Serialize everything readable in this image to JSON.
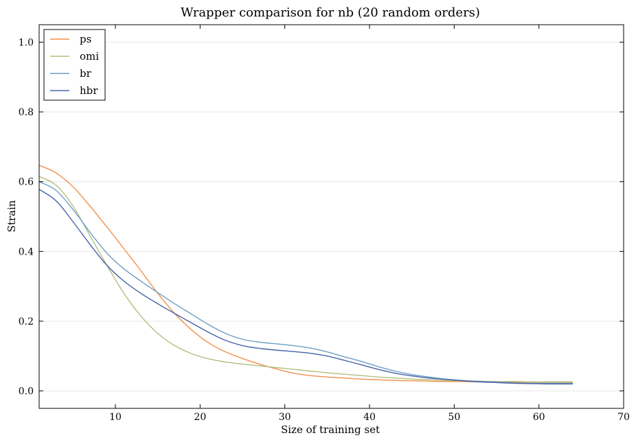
{
  "chart_data": {
    "type": "line",
    "title": "Wrapper comparison for nb (20 random orders)",
    "xlabel": "Size of training set",
    "ylabel": "Strain",
    "xlim": [
      1,
      70
    ],
    "ylim": [
      -0.05,
      1.05
    ],
    "xticks": [
      10,
      20,
      30,
      40,
      50,
      60,
      70
    ],
    "yticks": [
      0.0,
      0.2,
      0.4,
      0.6,
      0.8,
      1.0
    ],
    "grid": "horizontal",
    "legend": "top-left",
    "series": [
      {
        "name": "ps",
        "color": "#f0904a",
        "x": [
          1,
          3,
          5,
          7,
          9,
          11,
          13,
          15,
          17,
          19,
          21,
          23,
          25,
          27,
          29,
          31,
          33,
          35,
          37,
          39,
          41,
          43,
          45,
          47,
          49,
          51,
          53,
          55,
          57,
          59,
          61,
          63,
          64
        ],
        "y": [
          0.647,
          0.625,
          0.585,
          0.53,
          0.47,
          0.408,
          0.345,
          0.28,
          0.222,
          0.175,
          0.138,
          0.112,
          0.093,
          0.077,
          0.063,
          0.051,
          0.044,
          0.04,
          0.037,
          0.034,
          0.032,
          0.03,
          0.029,
          0.028,
          0.027,
          0.027,
          0.026,
          0.026,
          0.025,
          0.025,
          0.025,
          0.025,
          0.025
        ]
      },
      {
        "name": "omi",
        "color": "#b5bd7d",
        "x": [
          1,
          3,
          5,
          7,
          9,
          11,
          13,
          15,
          17,
          19,
          21,
          23,
          25,
          27,
          29,
          31,
          33,
          35,
          37,
          39,
          41,
          43,
          45,
          47,
          49,
          51,
          53,
          55,
          57,
          59,
          61,
          63,
          64
        ],
        "y": [
          0.615,
          0.59,
          0.53,
          0.445,
          0.36,
          0.28,
          0.215,
          0.165,
          0.13,
          0.107,
          0.092,
          0.083,
          0.077,
          0.072,
          0.067,
          0.062,
          0.057,
          0.052,
          0.048,
          0.044,
          0.04,
          0.037,
          0.034,
          0.032,
          0.03,
          0.029,
          0.028,
          0.027,
          0.027,
          0.026,
          0.026,
          0.026,
          0.026
        ]
      },
      {
        "name": "br",
        "color": "#6a9ec5",
        "x": [
          1,
          3,
          5,
          7,
          9,
          11,
          13,
          15,
          17,
          19,
          21,
          23,
          25,
          27,
          29,
          31,
          33,
          35,
          37,
          39,
          41,
          43,
          45,
          47,
          49,
          51,
          53,
          55,
          57,
          59,
          61,
          63,
          64
        ],
        "y": [
          0.6,
          0.575,
          0.52,
          0.455,
          0.395,
          0.35,
          0.315,
          0.282,
          0.25,
          0.22,
          0.19,
          0.165,
          0.148,
          0.14,
          0.135,
          0.13,
          0.123,
          0.112,
          0.098,
          0.085,
          0.07,
          0.057,
          0.047,
          0.04,
          0.034,
          0.03,
          0.027,
          0.025,
          0.023,
          0.022,
          0.022,
          0.022,
          0.022
        ]
      },
      {
        "name": "hbr",
        "color": "#4361a8",
        "x": [
          1,
          3,
          5,
          7,
          9,
          11,
          13,
          15,
          17,
          19,
          21,
          23,
          25,
          27,
          29,
          31,
          33,
          35,
          37,
          39,
          41,
          43,
          45,
          47,
          49,
          51,
          53,
          55,
          57,
          59,
          61,
          63,
          64
        ],
        "y": [
          0.578,
          0.545,
          0.485,
          0.42,
          0.36,
          0.315,
          0.28,
          0.25,
          0.222,
          0.195,
          0.168,
          0.145,
          0.13,
          0.122,
          0.117,
          0.113,
          0.108,
          0.1,
          0.088,
          0.075,
          0.062,
          0.051,
          0.043,
          0.037,
          0.033,
          0.029,
          0.026,
          0.024,
          0.022,
          0.021,
          0.02,
          0.02,
          0.02
        ]
      }
    ]
  }
}
